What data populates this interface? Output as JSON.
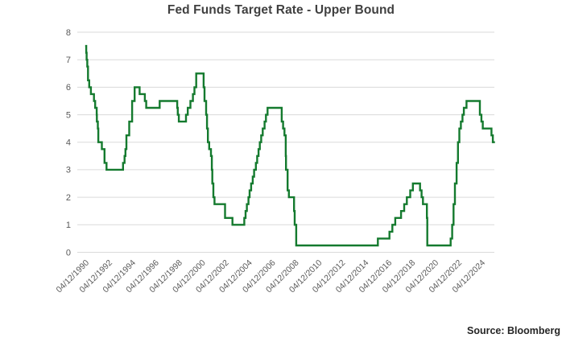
{
  "title": "Fed Funds Target Rate - Upper Bound",
  "source_note": "Source: Bloomberg",
  "colors": {
    "line": "#147a2e",
    "grid": "#dadada",
    "axis_text": "#595959",
    "title_text": "#404040",
    "source_text": "#262626",
    "background": "#ffffff"
  },
  "chart_data": {
    "type": "line",
    "line_style": "step-after",
    "title": "Fed Funds Target Rate - Upper Bound",
    "xlabel": "",
    "ylabel": "",
    "ylim": [
      0,
      8
    ],
    "y_ticks": [
      0,
      1,
      2,
      3,
      4,
      5,
      6,
      7,
      8
    ],
    "x_tick_labels": [
      "04/12/1990",
      "04/12/1992",
      "04/12/1994",
      "04/12/1996",
      "04/12/1998",
      "04/12/2000",
      "04/12/2002",
      "04/12/2004",
      "04/12/2006",
      "04/12/2008",
      "04/12/2010",
      "04/12/2012",
      "04/12/2014",
      "04/12/2016",
      "04/12/2018",
      "04/12/2020",
      "04/12/2022",
      "04/12/2024"
    ],
    "x_tick_date_format": "DD/MM/YYYY",
    "grid": "horizontal",
    "legend": "none",
    "series": [
      {
        "name": "Fed Funds Target Rate - Upper Bound",
        "units": "percent",
        "points": [
          [
            "1990-12-04",
            7.5
          ],
          [
            "1990-12-07",
            7.25
          ],
          [
            "1990-12-18",
            7.0
          ],
          [
            "1991-01-09",
            6.75
          ],
          [
            "1991-02-01",
            6.25
          ],
          [
            "1991-03-08",
            6.0
          ],
          [
            "1991-04-30",
            5.75
          ],
          [
            "1991-08-06",
            5.5
          ],
          [
            "1991-09-13",
            5.25
          ],
          [
            "1991-10-31",
            5.0
          ],
          [
            "1991-11-06",
            4.75
          ],
          [
            "1991-12-06",
            4.5
          ],
          [
            "1991-12-20",
            4.0
          ],
          [
            "1992-04-09",
            3.75
          ],
          [
            "1992-07-02",
            3.25
          ],
          [
            "1992-09-04",
            3.0
          ],
          [
            "1994-02-04",
            3.25
          ],
          [
            "1994-03-22",
            3.5
          ],
          [
            "1994-04-18",
            3.75
          ],
          [
            "1994-05-17",
            4.25
          ],
          [
            "1994-08-16",
            4.75
          ],
          [
            "1994-11-15",
            5.5
          ],
          [
            "1995-02-01",
            6.0
          ],
          [
            "1995-07-06",
            5.75
          ],
          [
            "1995-12-19",
            5.5
          ],
          [
            "1996-01-31",
            5.25
          ],
          [
            "1997-03-25",
            5.5
          ],
          [
            "1998-09-29",
            5.25
          ],
          [
            "1998-10-15",
            5.0
          ],
          [
            "1998-11-17",
            4.75
          ],
          [
            "1999-06-30",
            5.0
          ],
          [
            "1999-08-24",
            5.25
          ],
          [
            "1999-11-16",
            5.5
          ],
          [
            "2000-02-02",
            5.75
          ],
          [
            "2000-03-21",
            6.0
          ],
          [
            "2000-05-16",
            6.5
          ],
          [
            "2001-01-03",
            6.0
          ],
          [
            "2001-01-31",
            5.5
          ],
          [
            "2001-03-20",
            5.0
          ],
          [
            "2001-04-18",
            4.5
          ],
          [
            "2001-05-15",
            4.0
          ],
          [
            "2001-06-27",
            3.75
          ],
          [
            "2001-08-21",
            3.5
          ],
          [
            "2001-09-17",
            3.0
          ],
          [
            "2001-10-02",
            2.5
          ],
          [
            "2001-11-06",
            2.0
          ],
          [
            "2001-12-11",
            1.75
          ],
          [
            "2002-11-06",
            1.25
          ],
          [
            "2003-06-25",
            1.0
          ],
          [
            "2004-06-30",
            1.25
          ],
          [
            "2004-08-10",
            1.5
          ],
          [
            "2004-09-21",
            1.75
          ],
          [
            "2004-11-10",
            2.0
          ],
          [
            "2004-12-14",
            2.25
          ],
          [
            "2005-02-02",
            2.5
          ],
          [
            "2005-03-22",
            2.75
          ],
          [
            "2005-05-03",
            3.0
          ],
          [
            "2005-06-30",
            3.25
          ],
          [
            "2005-08-09",
            3.5
          ],
          [
            "2005-09-20",
            3.75
          ],
          [
            "2005-11-01",
            4.0
          ],
          [
            "2005-12-13",
            4.25
          ],
          [
            "2006-01-31",
            4.5
          ],
          [
            "2006-03-28",
            4.75
          ],
          [
            "2006-05-10",
            5.0
          ],
          [
            "2006-06-29",
            5.25
          ],
          [
            "2007-09-18",
            4.75
          ],
          [
            "2007-10-31",
            4.5
          ],
          [
            "2007-12-11",
            4.25
          ],
          [
            "2008-01-22",
            3.5
          ],
          [
            "2008-01-30",
            3.0
          ],
          [
            "2008-03-18",
            2.25
          ],
          [
            "2008-04-30",
            2.0
          ],
          [
            "2008-10-08",
            1.5
          ],
          [
            "2008-10-29",
            1.0
          ],
          [
            "2008-12-16",
            0.25
          ],
          [
            "2015-12-17",
            0.5
          ],
          [
            "2016-12-15",
            0.75
          ],
          [
            "2017-03-16",
            1.0
          ],
          [
            "2017-06-15",
            1.25
          ],
          [
            "2017-12-14",
            1.5
          ],
          [
            "2018-03-22",
            1.75
          ],
          [
            "2018-06-14",
            2.0
          ],
          [
            "2018-09-27",
            2.25
          ],
          [
            "2018-12-20",
            2.5
          ],
          [
            "2019-08-01",
            2.25
          ],
          [
            "2019-09-19",
            2.0
          ],
          [
            "2019-10-31",
            1.75
          ],
          [
            "2020-03-03",
            1.25
          ],
          [
            "2020-03-16",
            0.25
          ],
          [
            "2022-03-17",
            0.5
          ],
          [
            "2022-05-05",
            1.0
          ],
          [
            "2022-06-16",
            1.75
          ],
          [
            "2022-07-28",
            2.5
          ],
          [
            "2022-09-22",
            3.25
          ],
          [
            "2022-11-03",
            4.0
          ],
          [
            "2022-12-15",
            4.5
          ],
          [
            "2023-02-02",
            4.75
          ],
          [
            "2023-03-23",
            5.0
          ],
          [
            "2023-05-04",
            5.25
          ],
          [
            "2023-07-27",
            5.5
          ],
          [
            "2024-09-19",
            5.0
          ],
          [
            "2024-11-08",
            4.75
          ],
          [
            "2024-12-19",
            4.5
          ],
          [
            "2025-09-18",
            4.25
          ],
          [
            "2025-10-30",
            4.0
          ]
        ]
      }
    ]
  }
}
